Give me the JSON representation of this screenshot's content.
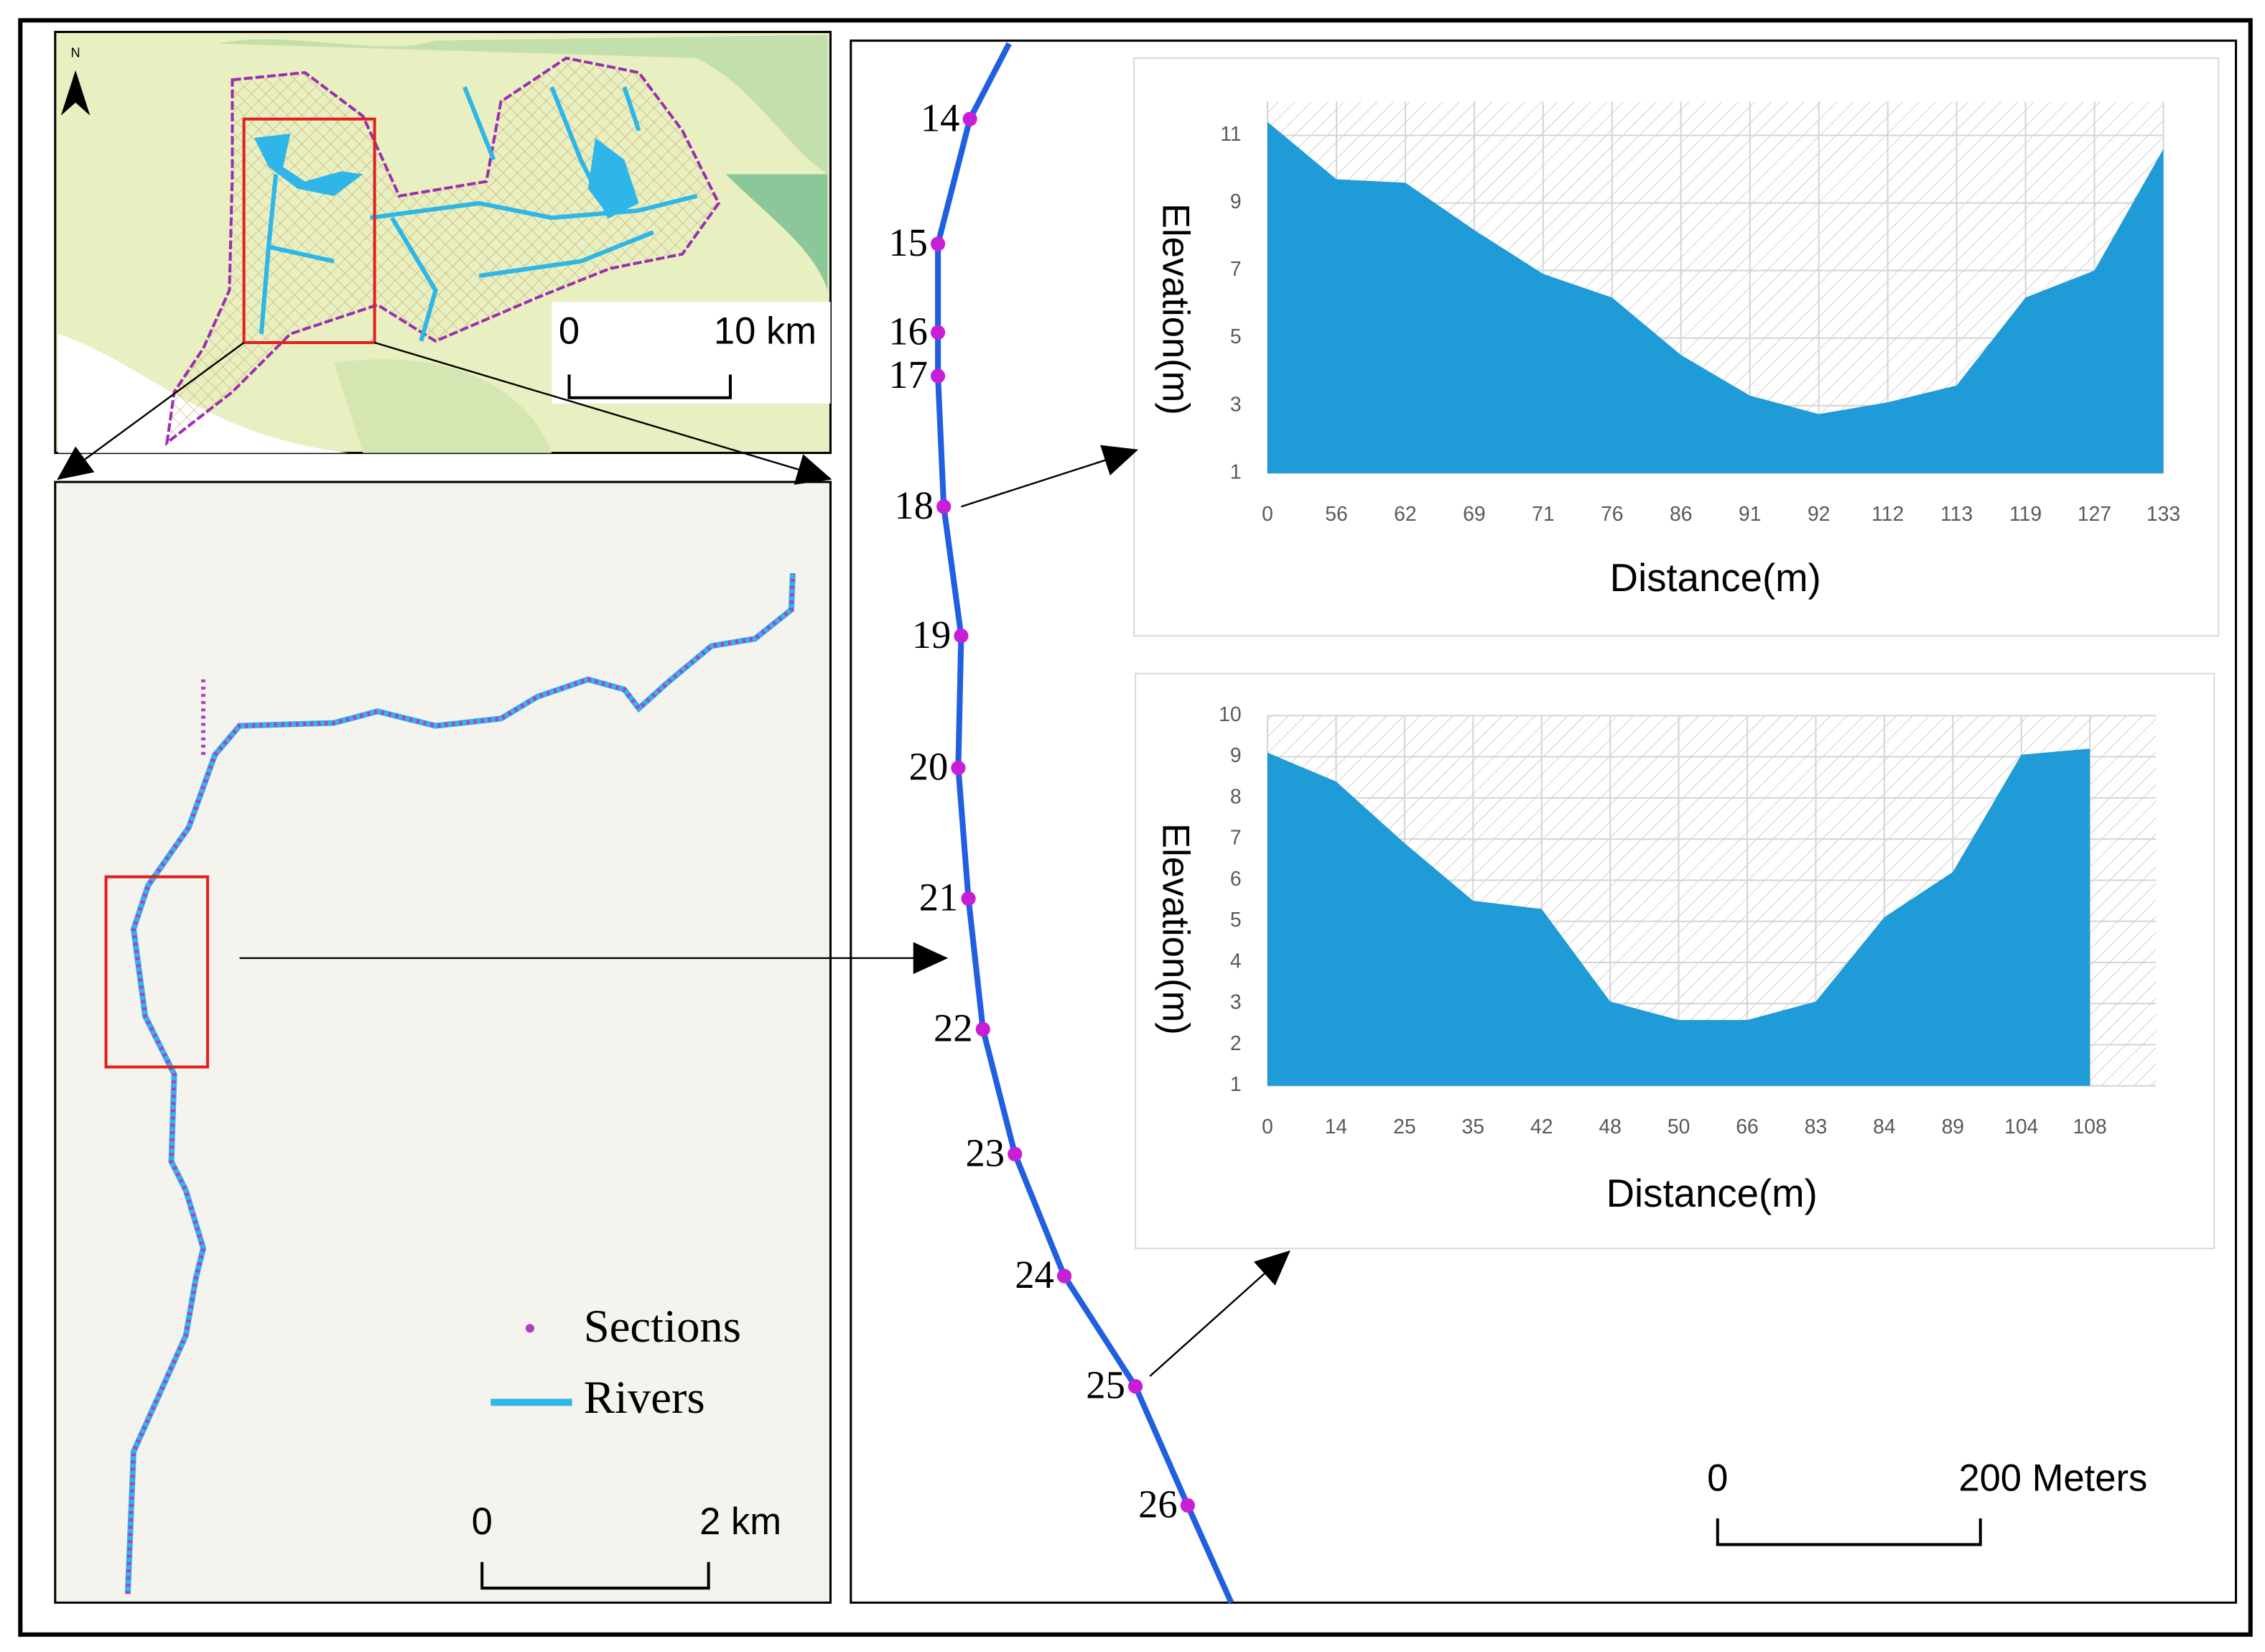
{
  "map": {
    "north": "N",
    "overview_scale": {
      "start": "0",
      "end": "10 km"
    },
    "detail_scale": {
      "start": "0",
      "end": "2 km"
    },
    "legend": {
      "sections": "Sections",
      "rivers": "Rivers"
    },
    "section_labels": [
      "14",
      "15",
      "16",
      "17",
      "18",
      "19",
      "20",
      "21",
      "22",
      "23",
      "24",
      "25",
      "26"
    ],
    "reach_scale": {
      "start": "0",
      "end": "200 Meters"
    }
  },
  "chart_data": [
    {
      "type": "area",
      "x_label": "Distance(m)",
      "y_label": "Elevation(m)",
      "color": "#1f9bd7",
      "categories": [
        "0",
        "56",
        "62",
        "69",
        "71",
        "76",
        "86",
        "91",
        "92",
        "112",
        "113",
        "119",
        "127",
        "133"
      ],
      "values": [
        11.4,
        9.7,
        9.6,
        8.2,
        6.9,
        6.2,
        4.5,
        3.3,
        2.75,
        3.1,
        3.6,
        6.2,
        7.0,
        10.6
      ],
      "ylim": [
        1,
        12
      ],
      "yticks": [
        1,
        3,
        5,
        7,
        9,
        11
      ],
      "grid": true
    },
    {
      "type": "area",
      "x_label": "Distance(m)",
      "y_label": "Elevation(m)",
      "color": "#1f9bd7",
      "categories": [
        "0",
        "14",
        "25",
        "35",
        "42",
        "48",
        "50",
        "66",
        "83",
        "84",
        "89",
        "104",
        "108"
      ],
      "values": [
        9.1,
        8.4,
        6.9,
        5.5,
        5.3,
        3.05,
        2.6,
        2.6,
        3.05,
        5.1,
        6.2,
        9.05,
        9.2
      ],
      "ylim": [
        1,
        10
      ],
      "yticks": [
        1,
        2,
        3,
        4,
        5,
        6,
        7,
        8,
        9,
        10
      ],
      "grid": true
    }
  ]
}
